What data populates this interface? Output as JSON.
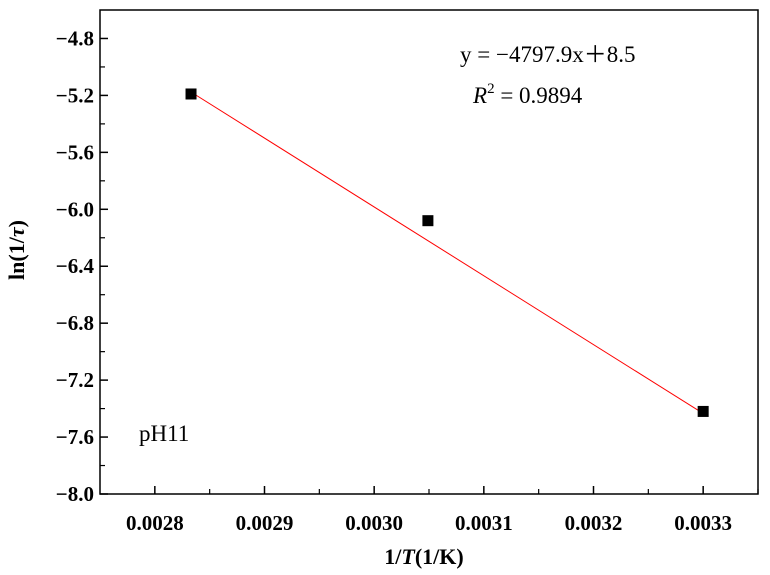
{
  "chart_data": {
    "type": "scatter",
    "xlabel": "1/T(1/K)",
    "ylabel": "ln(1/τ)",
    "xlim": [
      0.00275,
      0.00335
    ],
    "ylim": [
      -8.0,
      -4.6
    ],
    "x_ticks": [
      0.0028,
      0.0029,
      0.003,
      0.0031,
      0.0032,
      0.0033
    ],
    "x_tick_labels": [
      "0.0028",
      "0.0029",
      "0.0030",
      "0.0031",
      "0.0032",
      "0.0033"
    ],
    "y_ticks": [
      -4.8,
      -5.2,
      -5.6,
      -6.0,
      -6.4,
      -6.8,
      -7.2,
      -7.6,
      -8.0
    ],
    "y_tick_labels": [
      "−4.8",
      "−5.2",
      "−5.6",
      "−6.0",
      "−6.4",
      "−6.8",
      "−7.2",
      "−7.6",
      "−8.0"
    ],
    "grid": false,
    "series": [
      {
        "marker": "square",
        "color": "#000000",
        "points": [
          {
            "x": 0.002833,
            "y": -5.19
          },
          {
            "x": 0.003049,
            "y": -6.08
          },
          {
            "x": 0.0033,
            "y": -7.42
          }
        ]
      }
    ],
    "fit": {
      "slope": -4797.9,
      "intercept": 8.5,
      "x_range": [
        0.002833,
        0.0033
      ],
      "color": "#ff0000"
    },
    "annotations": {
      "equation": "y = −4797.9x＋8.5",
      "r2_symbol": "R",
      "r2_sup": "2",
      "r2_value": " = 0.9894",
      "sample": "pH11"
    }
  }
}
